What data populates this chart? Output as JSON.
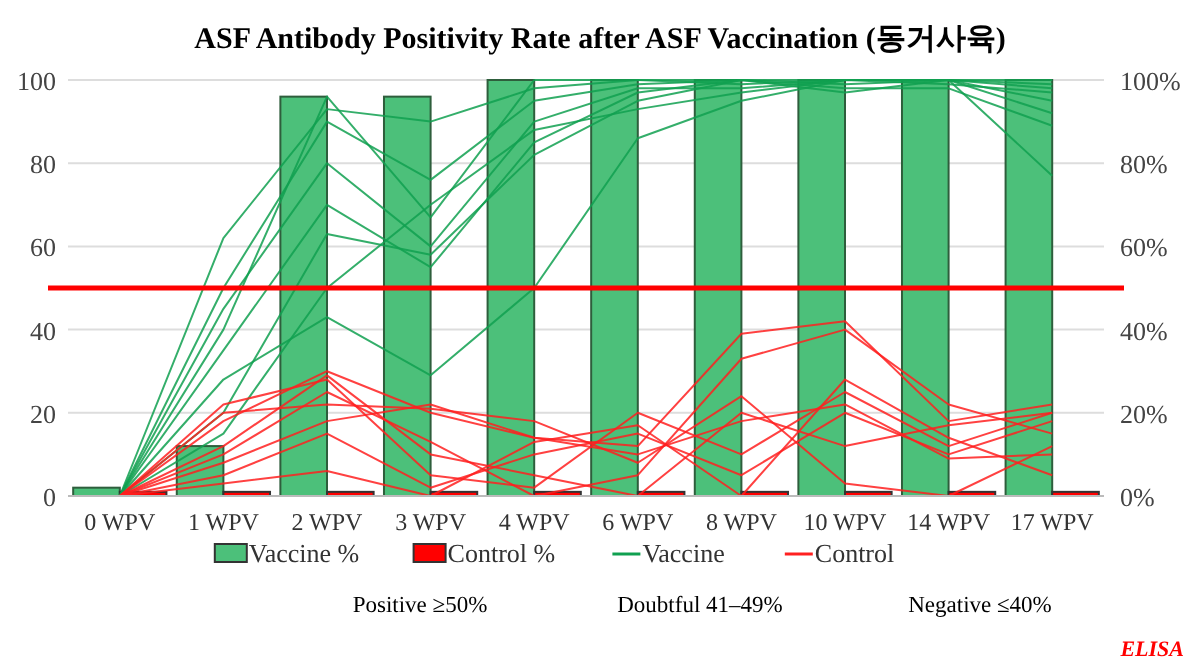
{
  "chart_data": {
    "type": "bar",
    "title": "ASF Antibody Positivity Rate after ASF Vaccination (동거사육)",
    "categories": [
      "0 WPV",
      "1 WPV",
      "2 WPV",
      "3 WPV",
      "4 WPV",
      "6 WPV",
      "8 WPV",
      "10 WPV",
      "14 WPV",
      "17 WPV"
    ],
    "series": [
      {
        "name": "Vaccine %",
        "color": "#4cc07a",
        "values": [
          2,
          12,
          96,
          96,
          100,
          100,
          100,
          100,
          100,
          100
        ]
      },
      {
        "name": "Control %",
        "color": "#ff0000",
        "values": [
          1,
          1,
          1,
          1,
          1,
          1,
          1,
          1,
          1,
          1
        ]
      },
      {
        "name": "Vaccine",
        "type": "line",
        "color": "#10a050",
        "values": [
          0,
          62,
          93,
          90,
          98,
          100,
          100,
          100,
          100,
          98
        ]
      },
      {
        "type": "line",
        "color": "#10a050",
        "values": [
          0,
          50,
          90,
          76,
          95,
          99,
          100,
          99,
          100,
          95
        ]
      },
      {
        "type": "line",
        "color": "#10a050",
        "values": [
          0,
          45,
          80,
          60,
          90,
          98,
          98,
          100,
          100,
          100
        ]
      },
      {
        "type": "line",
        "color": "#10a050",
        "values": [
          0,
          35,
          70,
          55,
          85,
          97,
          100,
          97,
          100,
          92
        ]
      },
      {
        "type": "line",
        "color": "#10a050",
        "values": [
          0,
          28,
          43,
          29,
          50,
          86,
          95,
          100,
          100,
          77
        ]
      },
      {
        "type": "line",
        "color": "#10a050",
        "values": [
          0,
          20,
          63,
          58,
          82,
          95,
          100,
          98,
          98,
          89
        ]
      },
      {
        "type": "line",
        "color": "#10a050",
        "values": [
          0,
          40,
          96,
          67,
          100,
          100,
          99,
          100,
          100,
          99
        ]
      },
      {
        "type": "line",
        "color": "#10a050",
        "values": [
          0,
          15,
          50,
          70,
          88,
          93,
          97,
          100,
          99,
          97
        ]
      },
      {
        "name": "Control",
        "type": "line",
        "color": "#ff2020",
        "values": [
          0,
          18,
          30,
          20,
          14,
          12,
          39,
          42,
          18,
          22
        ]
      },
      {
        "type": "line",
        "color": "#ff2020",
        "values": [
          0,
          22,
          28,
          5,
          2,
          20,
          10,
          25,
          12,
          20
        ]
      },
      {
        "type": "line",
        "color": "#ff2020",
        "values": [
          0,
          10,
          25,
          13,
          0,
          5,
          33,
          40,
          22,
          15
        ]
      },
      {
        "type": "line",
        "color": "#ff2020",
        "values": [
          0,
          5,
          15,
          2,
          10,
          15,
          5,
          20,
          10,
          18
        ]
      },
      {
        "type": "line",
        "color": "#ff2020",
        "values": [
          0,
          20,
          22,
          21,
          18,
          8,
          24,
          3,
          0,
          12
        ]
      },
      {
        "type": "line",
        "color": "#ff2020",
        "values": [
          0,
          3,
          6,
          0,
          13,
          17,
          0,
          28,
          14,
          5
        ]
      },
      {
        "type": "line",
        "color": "#ff2020",
        "values": [
          0,
          12,
          29,
          10,
          5,
          0,
          20,
          12,
          17,
          20
        ]
      },
      {
        "type": "line",
        "color": "#ff2020",
        "values": [
          0,
          8,
          18,
          22,
          14,
          10,
          18,
          22,
          9,
          10
        ]
      }
    ],
    "ylim": [
      0,
      100
    ],
    "yticks": [
      0,
      20,
      40,
      60,
      80,
      100
    ],
    "y2lim": [
      0,
      100
    ],
    "y2ticks": [
      {
        "value": 0,
        "label": "0%"
      },
      {
        "value": 20,
        "label": "20%"
      },
      {
        "value": 40,
        "label": "40%"
      },
      {
        "value": 60,
        "label": "60%"
      },
      {
        "value": 80,
        "label": "80%"
      },
      {
        "value": 100,
        "label": "100%"
      }
    ],
    "ref_lines": [
      {
        "axis": "y",
        "value": 50,
        "color": "#ff0000"
      }
    ],
    "grid": "y",
    "legend": "bottom",
    "annotations": [
      "Positive ≥50%",
      "Doubtful 41–49%",
      "Negative ≤40%",
      "ELISA"
    ]
  }
}
